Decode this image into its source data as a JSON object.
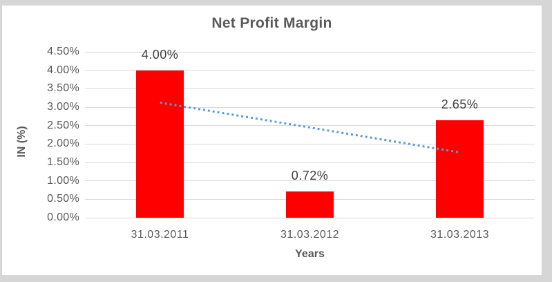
{
  "frame": {
    "background": "#d6d6d6",
    "chart_background": "#ffffff"
  },
  "chart_data": {
    "type": "bar",
    "title": "Net Profit Margin",
    "categories": [
      "31.03.2011",
      "31.03.2012",
      "31.03.2013"
    ],
    "values": [
      4.0,
      0.72,
      2.65
    ],
    "data_labels": [
      "4.00%",
      "0.72%",
      "2.65%"
    ],
    "xlabel": "Years",
    "ylabel": "IN (%)",
    "ylim": [
      0,
      4.5
    ],
    "ytick_step": 0.5,
    "ytick_labels": [
      "0.00%",
      "0.50%",
      "1.00%",
      "1.50%",
      "2.00%",
      "2.50%",
      "3.00%",
      "3.50%",
      "4.00%",
      "4.50%"
    ],
    "grid": true,
    "legend": "none",
    "bar_color": "#ff0000",
    "trendline": {
      "type": "linear",
      "style": "dotted",
      "color": "#5b9bd5",
      "start_value": 3.13,
      "end_value": 1.78
    },
    "colors": {
      "title": "#595959",
      "axis_titles": "#595959",
      "tick_labels": "#595959",
      "data_labels": "#404040",
      "gridlines": "#d9d9d9"
    }
  }
}
